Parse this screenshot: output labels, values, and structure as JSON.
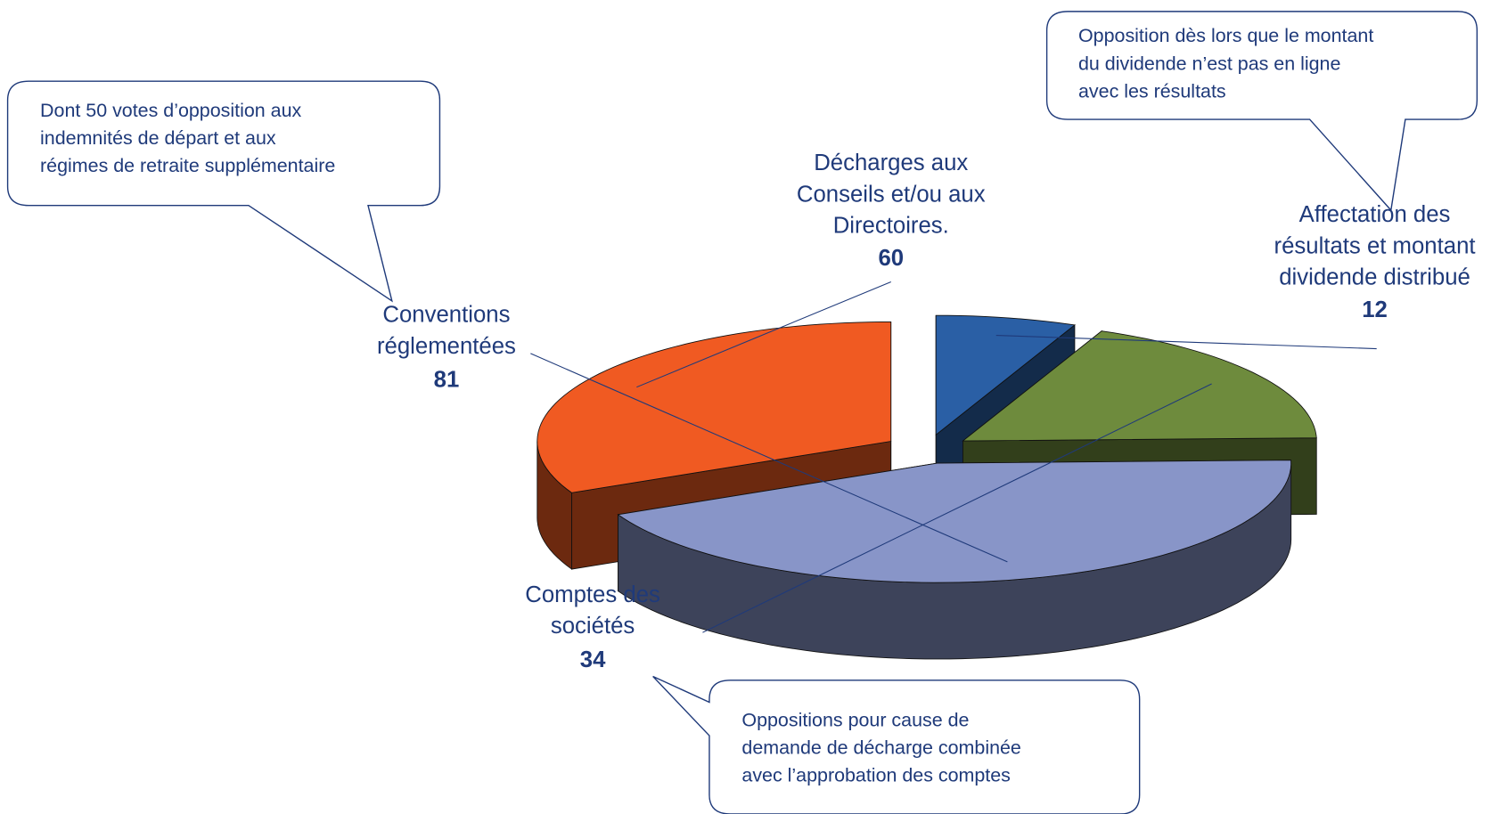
{
  "chart_data": {
    "type": "pie",
    "categories": [
      "Affectation des\nrésultats et montant\ndividende distribué",
      "Comptes des\nsociétés",
      "Conventions\nréglementées",
      "Décharges aux\nConseils et/ou aux\nDirectoires."
    ],
    "values": [
      12,
      34,
      81,
      60
    ],
    "colors": [
      "#2a5fa5",
      "#6e8b3d",
      "#8895c8",
      "#f05a22"
    ],
    "annotations": [
      "Dont 50 votes d’opposition aux\nindemnités de départ et aux\nrégimes de retraite supplémentaire",
      "Opposition dès lors que le montant\ndu dividende n’est pas en ligne\navec les résultats",
      "Oppositions pour cause de\ndemande de décharge combinée\navec l’approbation des comptes"
    ]
  }
}
